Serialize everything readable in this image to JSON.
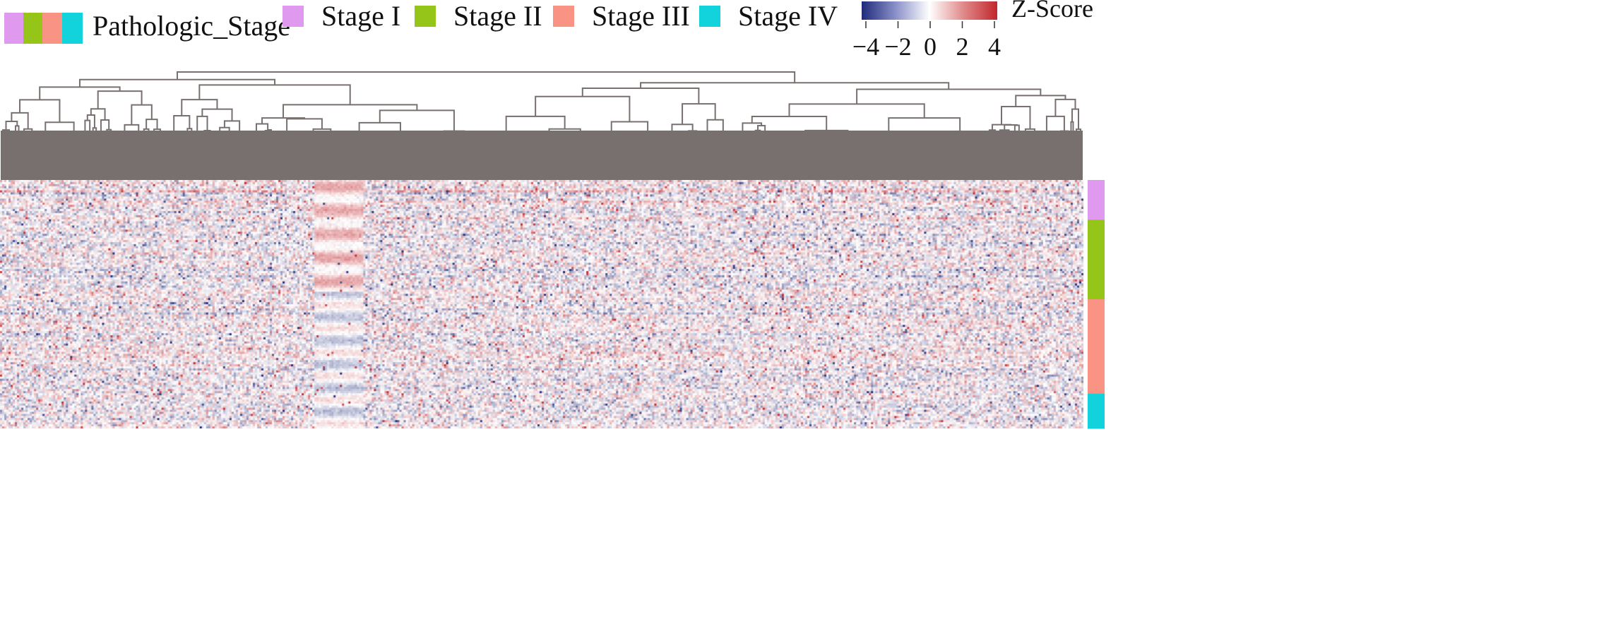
{
  "chart_data": {
    "type": "heatmap",
    "title": "",
    "xlabel": "",
    "ylabel": "",
    "annotation": {
      "title": "Pathologic_Stage",
      "categories": [
        "Stage I",
        "Stage II",
        "Stage III",
        "Stage IV"
      ],
      "colors": [
        "#df9aef",
        "#96c51a",
        "#f99485",
        "#12d3dc"
      ],
      "row_fractions": [
        0.16,
        0.32,
        0.38,
        0.14
      ]
    },
    "colorbar": {
      "title": "Z-Score",
      "range": [
        -4,
        4
      ],
      "ticks": [
        -4,
        -2,
        0,
        2,
        4
      ],
      "tick_labels": [
        "−4",
        "−2",
        "0",
        "2",
        "4"
      ],
      "low_color": "#1f2a7a",
      "mid_color": "#ffffff",
      "high_color": "#c1272d"
    },
    "dendrogram": {
      "position": "top",
      "line_color": "#78706f"
    },
    "matrix_shape": {
      "rows": 120,
      "columns": 510
    },
    "grid": false
  }
}
